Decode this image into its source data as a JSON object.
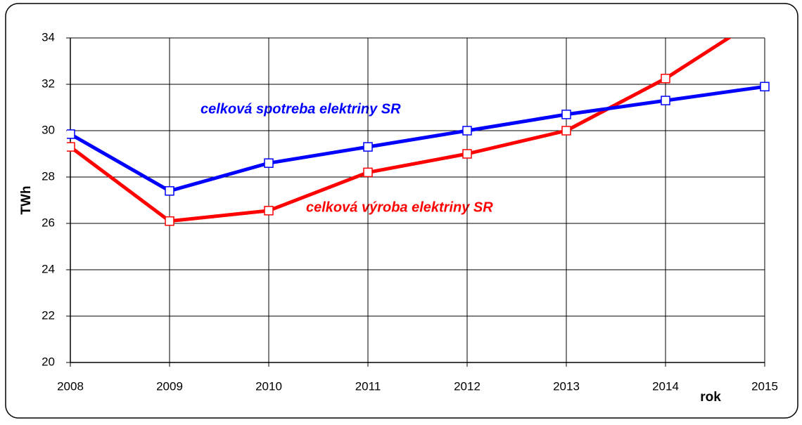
{
  "chart_data": {
    "type": "line",
    "x_label": "rok",
    "y_label": "TWh",
    "annotations": [
      "celková spotreba elektriny SR",
      "celková výroba elektriny SR"
    ],
    "x": [
      2008,
      2009,
      2010,
      2011,
      2012,
      2013,
      2014,
      2015
    ],
    "series": [
      {
        "name": "celková spotreba elektriny SR",
        "color": "#0000ff",
        "values": [
          29.85,
          27.4,
          28.6,
          29.3,
          30.0,
          30.7,
          31.3,
          31.9
        ]
      },
      {
        "name": "celková výroba elektriny SR",
        "color": "#ff0000",
        "values": [
          29.3,
          26.1,
          26.55,
          28.2,
          29.0,
          30.0,
          32.25,
          35.0
        ]
      }
    ],
    "xlim": [
      2008,
      2015
    ],
    "xticks": [
      2008,
      2009,
      2010,
      2011,
      2012,
      2013,
      2014,
      2015
    ],
    "ylim": [
      20,
      34
    ],
    "yticks": [
      20,
      22,
      24,
      26,
      28,
      30,
      32,
      34
    ],
    "grid": true
  }
}
